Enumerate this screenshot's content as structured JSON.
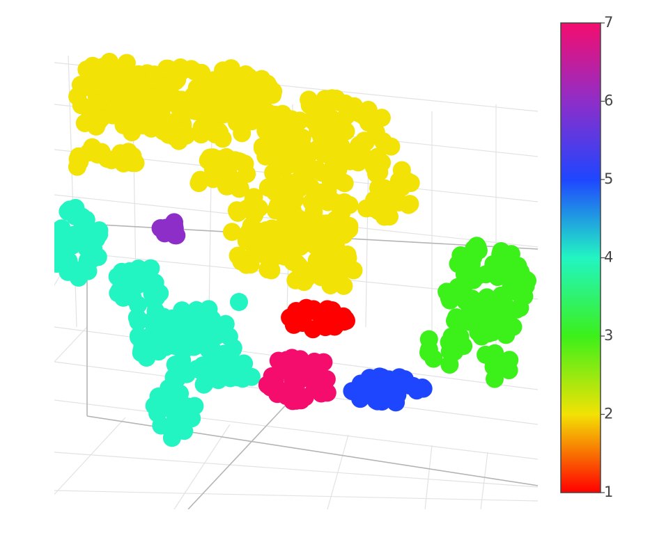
{
  "chart_data": {
    "type": "scatter",
    "subtype": "3d-scatter",
    "title": "",
    "grid": true,
    "colorscale": "hsv",
    "colorbar": {
      "range": [
        1,
        7
      ],
      "ticks": [
        "1",
        "2",
        "3",
        "4",
        "5",
        "6",
        "7"
      ],
      "stops": [
        {
          "value": 1.0,
          "color": "#ff0000"
        },
        {
          "value": 2.0,
          "color": "#f2e205"
        },
        {
          "value": 3.0,
          "color": "#3cf01a"
        },
        {
          "value": 4.0,
          "color": "#22f5c2"
        },
        {
          "value": 5.0,
          "color": "#1f46ff"
        },
        {
          "value": 6.0,
          "color": "#8e2ec9"
        },
        {
          "value": 7.0,
          "color": "#f50d6e"
        }
      ]
    },
    "clusters": [
      {
        "value": 2,
        "color": "#f2e205"
      },
      {
        "value": 4,
        "color": "#22f5c2"
      },
      {
        "value": 3,
        "color": "#3cf01a"
      },
      {
        "value": 1,
        "color": "#ff0000"
      },
      {
        "value": 7,
        "color": "#f50d6e"
      },
      {
        "value": 5,
        "color": "#1f46ff"
      },
      {
        "value": 6,
        "color": "#8e2ec9"
      }
    ]
  }
}
